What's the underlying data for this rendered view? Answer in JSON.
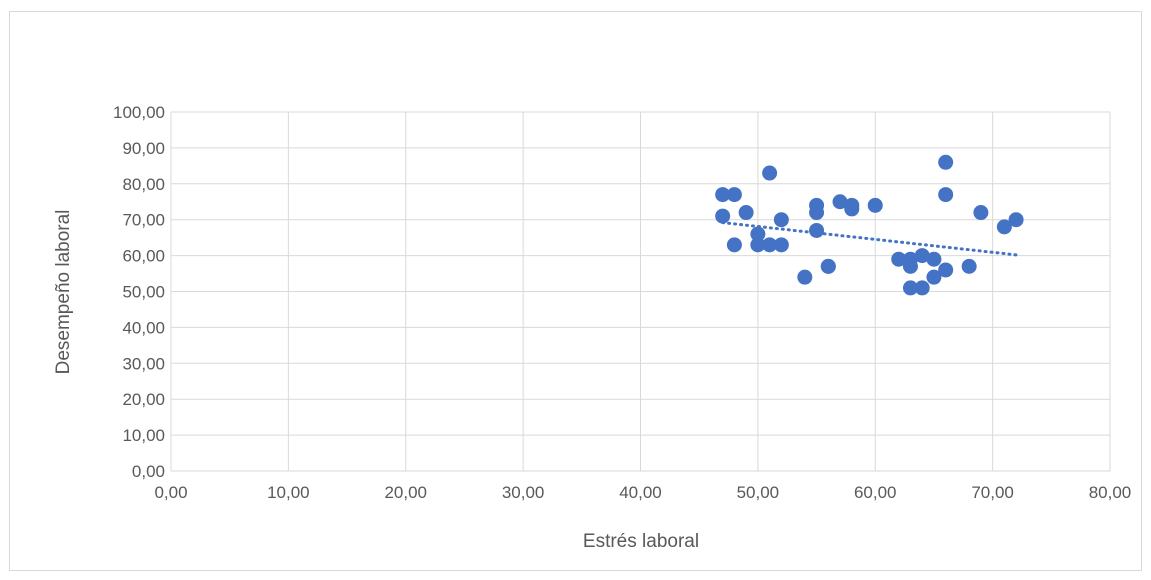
{
  "chart_data": {
    "type": "scatter",
    "title": "",
    "xlabel": "Estrés laboral",
    "ylabel": "Desempeño laboral",
    "xlim": [
      0,
      80
    ],
    "ylim": [
      0,
      100
    ],
    "xticks": [
      "0,00",
      "10,00",
      "20,00",
      "30,00",
      "40,00",
      "50,00",
      "60,00",
      "70,00",
      "80,00"
    ],
    "yticks": [
      "0,00",
      "10,00",
      "20,00",
      "30,00",
      "40,00",
      "50,00",
      "60,00",
      "70,00",
      "80,00",
      "90,00",
      "100,00"
    ],
    "grid": true,
    "legend": "none",
    "colors": {
      "points": "#4472c4",
      "trendline": "#4472c4",
      "grid": "#d9d9d9",
      "text": "#595959"
    },
    "series": [
      {
        "x": [
          47,
          47,
          48,
          48,
          49,
          50,
          50,
          51,
          51,
          52,
          52,
          54,
          55,
          55,
          55,
          56,
          56,
          57,
          58,
          58,
          60,
          62,
          63,
          63,
          63,
          64,
          64,
          65,
          65,
          66,
          66,
          66,
          68,
          69,
          71,
          72
        ],
        "y": [
          77,
          71,
          77,
          63,
          72,
          66,
          63,
          83,
          63,
          70,
          63,
          54,
          74,
          72,
          67,
          57,
          57,
          75,
          74,
          73,
          74,
          59,
          59,
          57,
          51,
          60,
          51,
          59,
          54,
          86,
          77,
          56,
          57,
          72,
          68,
          70
        ]
      }
    ],
    "trendline": {
      "type": "linear",
      "style": "dotted",
      "x": [
        47,
        72
      ],
      "y": [
        69.2,
        60.2
      ]
    }
  }
}
